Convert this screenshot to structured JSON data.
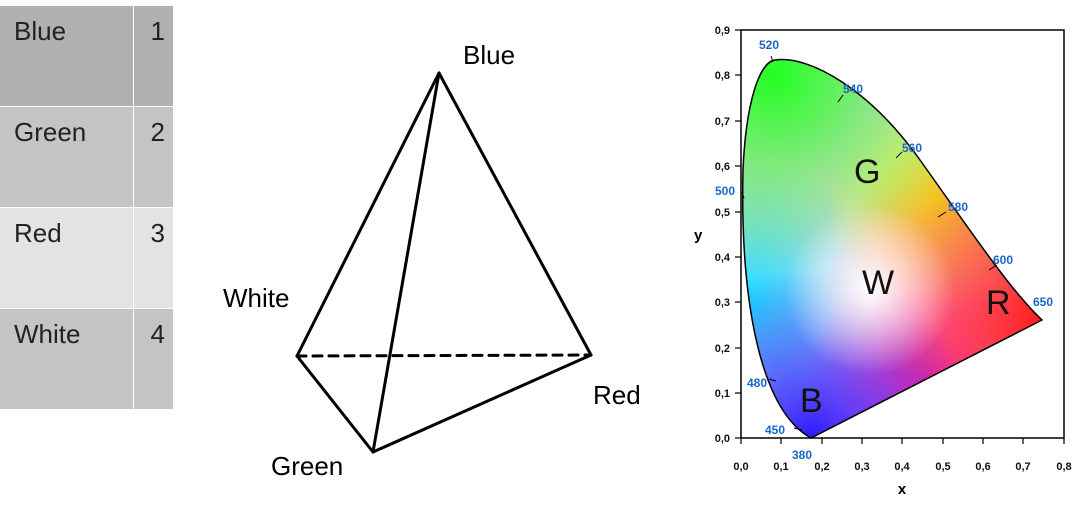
{
  "table": {
    "rows": [
      {
        "name": "Blue",
        "num": "1",
        "color": "#b0b0b0"
      },
      {
        "name": "Green",
        "num": "2",
        "color": "#c4c4c4"
      },
      {
        "name": "Red",
        "num": "3",
        "color": "#e3e3e3"
      },
      {
        "name": "White",
        "num": "4",
        "color": "#c4c4c4"
      }
    ]
  },
  "tetrahedron": {
    "labels": {
      "blue": "Blue",
      "white": "White",
      "red": "Red",
      "green": "Green"
    }
  },
  "cie": {
    "x_label": "x",
    "y_label": "y",
    "x_ticks": [
      "0,0",
      "0,1",
      "0,2",
      "0,3",
      "0,4",
      "0,5",
      "0,6",
      "0,7",
      "0,8"
    ],
    "y_ticks": [
      "0,0",
      "0,1",
      "0,2",
      "0,3",
      "0,4",
      "0,5",
      "0,6",
      "0,7",
      "0,8",
      "0,9"
    ],
    "wavelengths": [
      "520",
      "540",
      "560",
      "580",
      "600",
      "650",
      "500",
      "480",
      "450",
      "380"
    ],
    "region_labels": {
      "g": "G",
      "w": "W",
      "r": "R",
      "b": "B"
    },
    "accent_color": "#1a66c8"
  }
}
